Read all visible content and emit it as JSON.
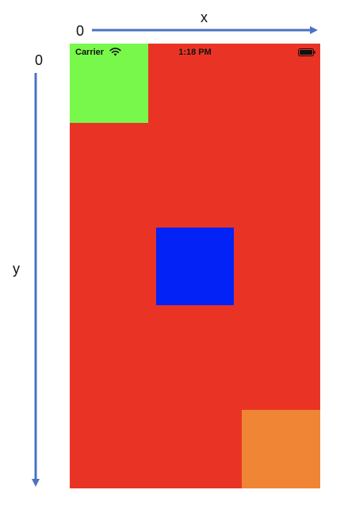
{
  "axes": {
    "x_origin": "0",
    "x_label": "x",
    "y_origin": "0",
    "y_label": "y",
    "color": "#4a72c4"
  },
  "status_bar": {
    "carrier": "Carrier",
    "time": "1:18 PM",
    "icons": [
      "wifi-icon",
      "battery-icon"
    ]
  },
  "views": [
    {
      "name": "background-view",
      "color": "#e93425"
    },
    {
      "name": "top-left-view",
      "color": "#78f84a"
    },
    {
      "name": "center-view",
      "color": "#0322f5"
    },
    {
      "name": "bottom-right-view",
      "color": "#ef8535"
    }
  ]
}
